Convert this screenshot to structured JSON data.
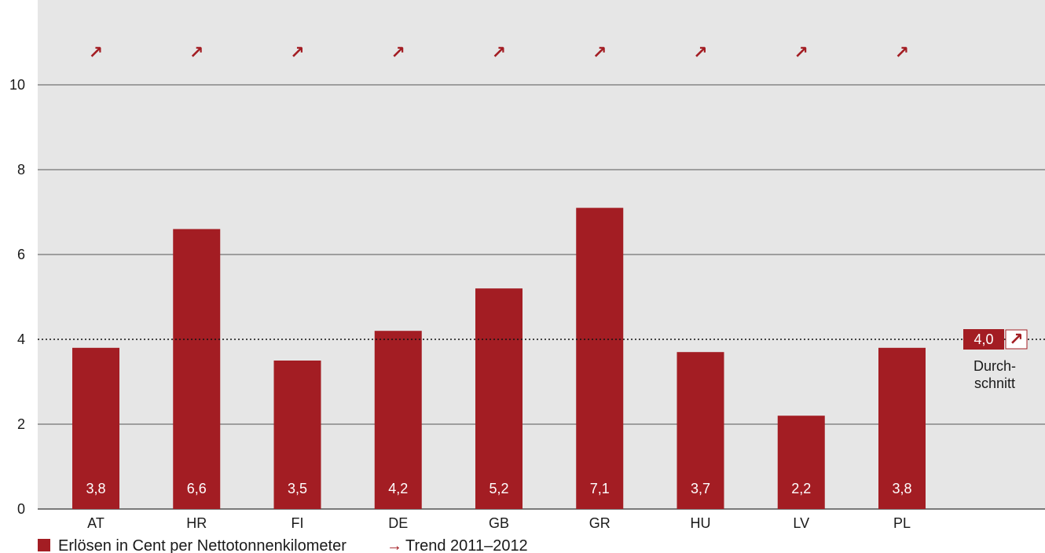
{
  "chart_data": {
    "type": "bar",
    "categories": [
      "AT",
      "HR",
      "FI",
      "DE",
      "GB",
      "GR",
      "HU",
      "LV",
      "PL"
    ],
    "values": [
      3.8,
      6.6,
      3.5,
      4.2,
      5.2,
      7.1,
      3.7,
      2.2,
      3.8
    ],
    "value_labels": [
      "3,8",
      "6,6",
      "3,5",
      "4,2",
      "5,2",
      "7,1",
      "3,7",
      "2,2",
      "3,8"
    ],
    "trend_symbol": "↗",
    "ylim": [
      0,
      12
    ],
    "yticks": [
      0,
      2,
      4,
      6,
      8,
      10
    ],
    "grid": true,
    "average": {
      "value": 4.0,
      "label": "4,0",
      "trend_symbol": "↗",
      "text_line1": "Durch-",
      "text_line2": "schnitt"
    },
    "legend": {
      "series_label": "Erlösen in Cent per Nettotonnenkilometer",
      "trend_arrow": "→",
      "trend_label": "Trend 2011–2012"
    },
    "colors": {
      "bar": "#a31d23",
      "plot_bg": "#e6e6e6",
      "grid": "#555555"
    }
  }
}
